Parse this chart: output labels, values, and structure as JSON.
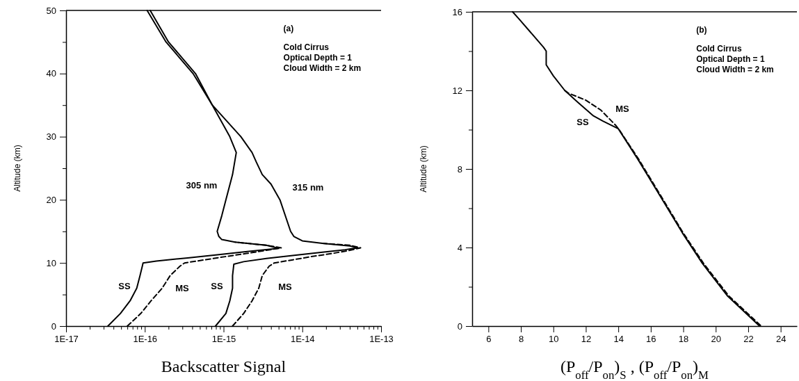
{
  "chart_data": [
    {
      "type": "line",
      "xlabel": "Backscatter Signal",
      "ylabel": "Altitude (km)",
      "log": "x",
      "annotations": [
        "(a)",
        "Cold Cirrus",
        "Optical Depth = 1",
        "Cloud Width = 2 km",
        "305 nm",
        "315 nm",
        "SS",
        "MS",
        "SS",
        "MS"
      ],
      "xlim": [
        1e-17,
        1e-13
      ],
      "ylim": [
        0,
        50
      ],
      "xticks": [
        {
          "value": 1e-17,
          "label": "1E-17"
        },
        {
          "value": 2e-17,
          "label": null
        },
        {
          "value": 3e-17,
          "label": null
        },
        {
          "value": 4e-17,
          "label": null
        },
        {
          "value": 5e-17,
          "label": null
        },
        {
          "value": 6e-17,
          "label": null
        },
        {
          "value": 7e-17,
          "label": null
        },
        {
          "value": 8e-17,
          "label": null
        },
        {
          "value": 9e-17,
          "label": null
        },
        {
          "value": 1e-16,
          "label": "1E-16"
        },
        {
          "value": 2e-16,
          "label": null
        },
        {
          "value": 3e-16,
          "label": null
        },
        {
          "value": 4e-16,
          "label": null
        },
        {
          "value": 5e-16,
          "label": null
        },
        {
          "value": 6e-16,
          "label": null
        },
        {
          "value": 7e-16,
          "label": null
        },
        {
          "value": 8e-16,
          "label": null
        },
        {
          "value": 9e-16,
          "label": null
        },
        {
          "value": 1e-15,
          "label": "1E-15"
        },
        {
          "value": 2e-15,
          "label": null
        },
        {
          "value": 3e-15,
          "label": null
        },
        {
          "value": 4e-15,
          "label": null
        },
        {
          "value": 5e-15,
          "label": null
        },
        {
          "value": 6e-15,
          "label": null
        },
        {
          "value": 7e-15,
          "label": null
        },
        {
          "value": 8e-15,
          "label": null
        },
        {
          "value": 9e-15,
          "label": null
        },
        {
          "value": 1e-14,
          "label": "1E-14"
        },
        {
          "value": 2e-14,
          "label": null
        },
        {
          "value": 3e-14,
          "label": null
        },
        {
          "value": 4e-14,
          "label": null
        },
        {
          "value": 5e-14,
          "label": null
        },
        {
          "value": 6e-14,
          "label": null
        },
        {
          "value": 7e-14,
          "label": null
        },
        {
          "value": 8e-14,
          "label": null
        },
        {
          "value": 9e-14,
          "label": null
        },
        {
          "value": 1e-13,
          "label": "1E-13"
        }
      ],
      "yticks": [
        0,
        {
          "value": 5,
          "label": null
        },
        10,
        {
          "value": 15,
          "label": null
        },
        20,
        {
          "value": 25,
          "label": null
        },
        30,
        {
          "value": 35,
          "label": null
        },
        40,
        {
          "value": 45,
          "label": null
        },
        50
      ],
      "series": [
        {
          "color": "#000000",
          "line_style": "solid",
          "x": [
            3.4e-17,
            4.9e-17,
            6.5e-17,
            7.9e-17,
            8.7e-17,
            9.3e-17,
            9.5e-17,
            1.4e-16,
            3.5e-16,
            8.3e-16,
            2e-15,
            5e-15,
            3.5e-15,
            1.4e-15,
            9.5e-16,
            8.7e-16,
            8.3e-16,
            9.5e-16,
            1.07e-15,
            1.3e-15,
            1.45e-15,
            1.2e-15,
            7.2e-16,
            4.4e-16,
            2e-16,
            1.17e-16
          ],
          "values": [
            0,
            2,
            4,
            6,
            8,
            9.5,
            10,
            10.3,
            10.8,
            11.3,
            11.8,
            12.3,
            12.8,
            13.3,
            13.7,
            14.2,
            15,
            17.5,
            20,
            24,
            27.5,
            30,
            35,
            40,
            45,
            50
          ]
        },
        {
          "color": "#000000",
          "line_style": "dashed",
          "x": [
            6e-17,
            8.9e-17,
            1.2e-16,
            1.66e-16,
            2.1e-16,
            2.8e-16,
            3.2e-16,
            5.8e-16,
            1.05e-15,
            1.95e-15,
            3.5e-15,
            5.4e-15,
            3.5e-15,
            1.4e-15
          ],
          "values": [
            0,
            2,
            4,
            6,
            8,
            9.5,
            10,
            10.5,
            11,
            11.5,
            12,
            12.4,
            12.8,
            13.3
          ]
        },
        {
          "color": "#000000",
          "line_style": "solid",
          "x": [
            7.9e-16,
            1.07e-15,
            1.2e-15,
            1.3e-15,
            1.3e-15,
            1.35e-15,
            1.8e-15,
            3.5e-15,
            7.9e-15,
            1.8e-14,
            3.5e-14,
            5.1e-14,
            4e-14,
            1.8e-14,
            1e-14,
            7.8e-15,
            7.1e-15,
            5.2e-15,
            4e-15,
            3.1e-15,
            2.6e-15,
            2.3e-15,
            1.66e-15,
            7.2e-16,
            4.1e-16,
            1.86e-16,
            1.07e-16
          ],
          "values": [
            0,
            2,
            4,
            6,
            8,
            9.8,
            10.2,
            10.7,
            11.2,
            11.7,
            12.1,
            12.4,
            12.7,
            13.1,
            13.5,
            14.2,
            15,
            20,
            22.5,
            24,
            26,
            27.5,
            30,
            35,
            40,
            45,
            50
          ]
        },
        {
          "color": "#000000",
          "line_style": "dashed",
          "x": [
            1.3e-15,
            1.8e-15,
            2.3e-15,
            2.8e-15,
            3.1e-15,
            3.8e-15,
            4.4e-15,
            7.6e-15,
            1.3e-14,
            2.4e-14,
            4e-14,
            5.5e-14,
            4e-14,
            1.8e-14
          ],
          "values": [
            0,
            2,
            4,
            6,
            8,
            9.5,
            10,
            10.5,
            11,
            11.5,
            12,
            12.4,
            12.8,
            13.1
          ]
        }
      ]
    },
    {
      "type": "line",
      "xlabel": "(P$_{off}$/P$_{on}$)$_{S}$ , (P$_{off}$/P$_{on}$)$_{M}$",
      "ylabel": "Altitude (km)",
      "annotations": [
        "(b)",
        "Cold Cirrus",
        "Optical Depth = 1",
        "Cloud Width = 2 km",
        "MS",
        "SS"
      ],
      "xlim": [
        5,
        25
      ],
      "ylim": [
        0,
        16
      ],
      "xticks": [
        6,
        8,
        10,
        12,
        14,
        16,
        18,
        20,
        22,
        24
      ],
      "yticks": [
        0,
        {
          "value": 2,
          "label": null
        },
        4,
        {
          "value": 6,
          "label": null
        },
        8,
        {
          "value": 10,
          "label": null
        },
        12,
        {
          "value": 14,
          "label": null
        },
        16
      ],
      "series": [
        {
          "color": "#000000",
          "line_style": "solid",
          "x": [
            7.49,
            7.87,
            9.39,
            9.56,
            9.56,
            10.0,
            10.7,
            11.5,
            12.47,
            13.05,
            14.0,
            15.2,
            16.3,
            17.95,
            19.18,
            20.74,
            22.7
          ],
          "values": [
            16,
            15.65,
            14.2,
            14.0,
            13.3,
            12.74,
            12.0,
            11.4,
            10.7,
            10.44,
            10.05,
            8.5,
            7.0,
            4.74,
            3.19,
            1.52,
            0
          ]
        },
        {
          "color": "#000000",
          "line_style": "dashed",
          "x": [
            10.7,
            10.93,
            12.0,
            12.92,
            13.82,
            14.05,
            15.25,
            16.35,
            18.0,
            19.25,
            20.82,
            22.8
          ],
          "values": [
            12.0,
            11.86,
            11.5,
            11.0,
            10.24,
            10.0,
            8.5,
            7.0,
            4.74,
            3.19,
            1.52,
            0
          ]
        }
      ]
    }
  ]
}
